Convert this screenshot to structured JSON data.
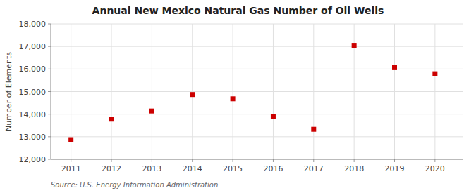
{
  "chart_data": {
    "type": "scatter",
    "title": "Annual New Mexico Natural Gas Number of Oil Wells",
    "y_label": "Number of Elements",
    "source": "Source: U.S. Energy Information Administration",
    "x": [
      2011,
      2012,
      2013,
      2014,
      2015,
      2016,
      2017,
      2018,
      2019,
      2020
    ],
    "values": [
      12870,
      13780,
      14140,
      14870,
      14680,
      13900,
      13330,
      17050,
      16060,
      15790
    ],
    "color": "#cc0000",
    "marker": "square",
    "xlim": [
      2010.5,
      2020.7
    ],
    "xticks": [
      2011,
      2012,
      2013,
      2014,
      2015,
      2016,
      2017,
      2018,
      2019,
      2020
    ],
    "ylim": [
      12000,
      18000
    ],
    "yticks": [
      {
        "value": 12000,
        "label": "12,000"
      },
      {
        "value": 13000,
        "label": "13,000"
      },
      {
        "value": 14000,
        "label": "14,000"
      },
      {
        "value": 15000,
        "label": "15,000"
      },
      {
        "value": 16000,
        "label": "16,000"
      },
      {
        "value": 17000,
        "label": "17,000"
      },
      {
        "value": 18000,
        "label": "18,000"
      }
    ],
    "grid": true
  }
}
